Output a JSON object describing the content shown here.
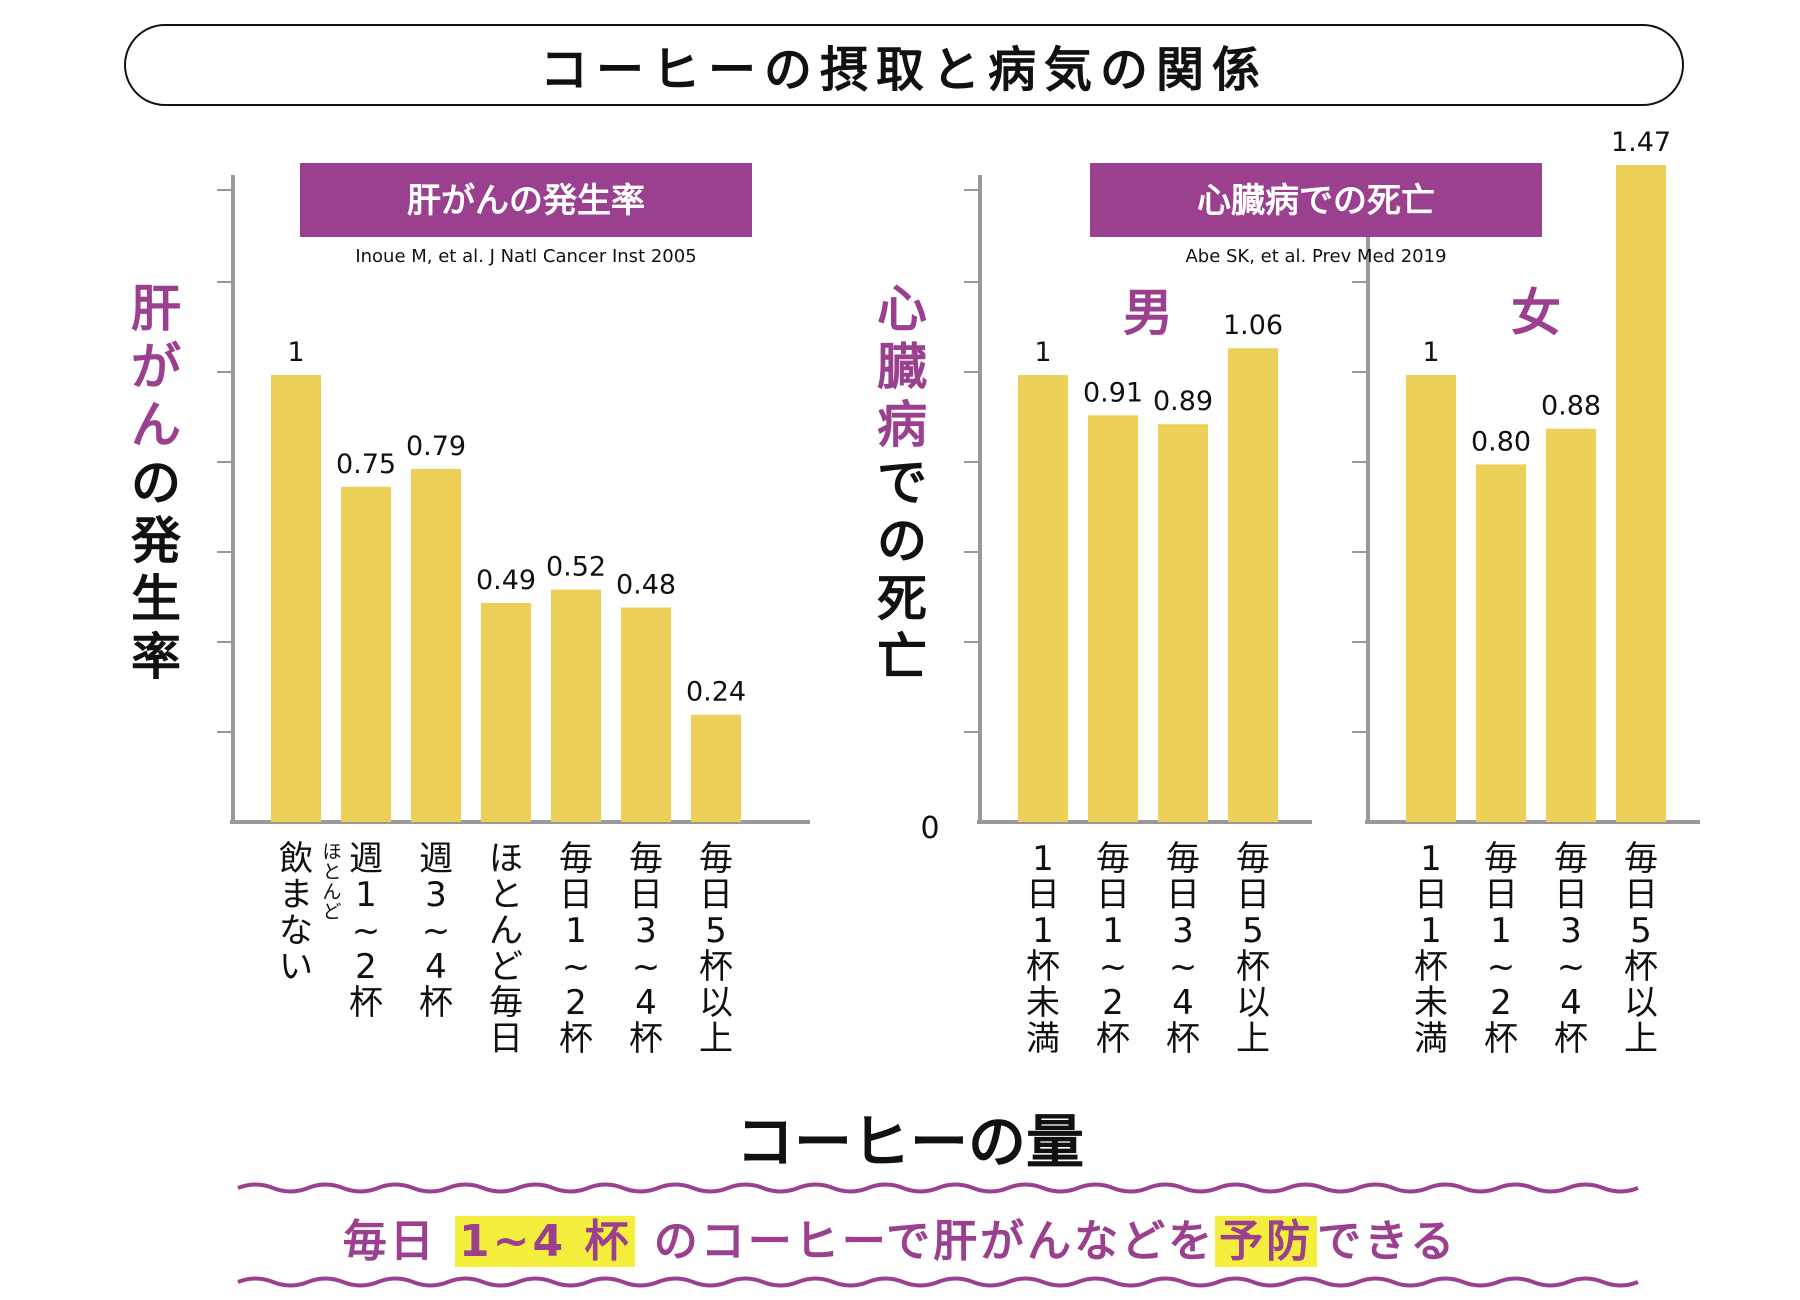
{
  "title": "コーヒーの摂取と病気の関係",
  "xtitle": "コーヒーの量",
  "bottom": {
    "pre": "毎日",
    "hl1": "1~4 杯",
    "mid": "のコーヒーで肝がんなどを",
    "hl2": "予防",
    "post": "できる"
  },
  "liver_ylabel": {
    "purple": "肝がん",
    "black": "の発生率"
  },
  "heart_ylabel": {
    "purple": "心臓病",
    "black": "での死亡"
  },
  "colors": {
    "bar": "#ecd058",
    "accent": "#9b3f8f",
    "axis": "#999999",
    "highlight": "#f4ef3d"
  },
  "chart_data": [
    {
      "type": "bar",
      "title": "肝がんの発生率",
      "source": "Inoue M, et al. J Natl Cancer Inst 2005",
      "ylim": [
        0,
        1.47
      ],
      "categories": [
        "飲まない",
        "ほとんど 週1~2杯",
        "週3~4杯",
        "ほとんど毎日",
        "毎日1~2杯",
        "毎日3~4杯",
        "毎日5杯以上"
      ],
      "values": [
        1,
        0.75,
        0.79,
        0.49,
        0.52,
        0.48,
        0.24
      ],
      "value_labels": [
        "1",
        "0.75",
        "0.79",
        "0.49",
        "0.52",
        "0.48",
        "0.24"
      ]
    },
    {
      "type": "bar",
      "title": "心臓病での死亡",
      "source": "Abe SK, et al. Prev Med 2019",
      "ylim": [
        0,
        1.47
      ],
      "y_tick_label": "0",
      "panels": [
        {
          "name": "男",
          "categories": [
            "1日1杯未満",
            "毎日1~2杯",
            "毎日3~4杯",
            "毎日5杯以上"
          ],
          "values": [
            1,
            0.91,
            0.89,
            1.06
          ],
          "value_labels": [
            "1",
            "0.91",
            "0.89",
            "1.06"
          ]
        },
        {
          "name": "女",
          "categories": [
            "1日1杯未満",
            "毎日1~2杯",
            "毎日3~4杯",
            "毎日5杯以上"
          ],
          "values": [
            1,
            0.8,
            0.88,
            1.47
          ],
          "value_labels": [
            "1",
            "0.80",
            "0.88",
            "1.47"
          ]
        }
      ]
    }
  ]
}
